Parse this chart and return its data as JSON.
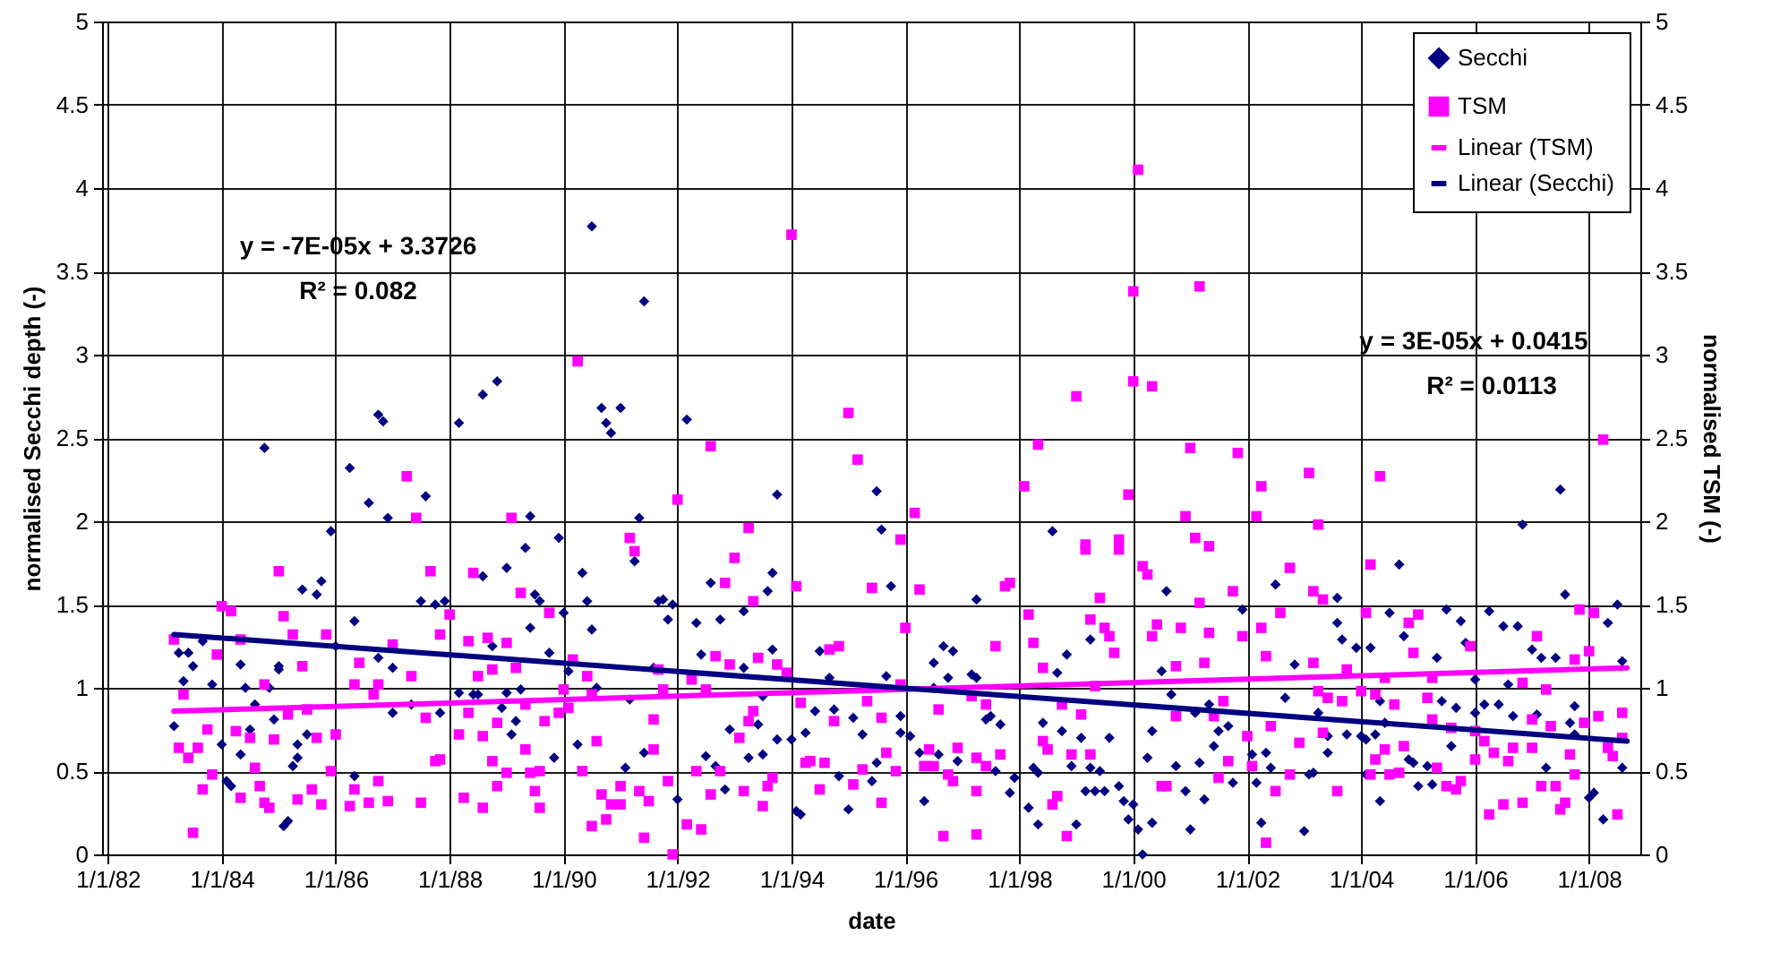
{
  "chart_data": {
    "type": "scatter",
    "xlabel": "date",
    "ylabel": "normalised Secchi depth (-)",
    "y2label": "normalised TSM (-)",
    "xlim": [
      "1981-11-25",
      "2008-11-25"
    ],
    "xticks": [
      {
        "value": "1982-01-01",
        "label": "1/1/82"
      },
      {
        "value": "1984-01-01",
        "label": "1/1/84"
      },
      {
        "value": "1986-01-01",
        "label": "1/1/86"
      },
      {
        "value": "1988-01-01",
        "label": "1/1/88"
      },
      {
        "value": "1990-01-01",
        "label": "1/1/90"
      },
      {
        "value": "1992-01-01",
        "label": "1/1/92"
      },
      {
        "value": "1994-01-01",
        "label": "1/1/94"
      },
      {
        "value": "1996-01-01",
        "label": "1/1/96"
      },
      {
        "value": "1998-01-01",
        "label": "1/1/98"
      },
      {
        "value": "2000-01-01",
        "label": "1/1/00"
      },
      {
        "value": "2002-01-01",
        "label": "1/1/02"
      },
      {
        "value": "2004-01-01",
        "label": "1/1/04"
      },
      {
        "value": "2006-01-01",
        "label": "1/1/06"
      },
      {
        "value": "2008-01-01",
        "label": "1/1/08"
      }
    ],
    "ylim": [
      0,
      5
    ],
    "yticks": [
      0,
      0.5,
      1,
      1.5,
      2,
      2.5,
      3,
      3.5,
      4,
      4.5,
      5
    ],
    "y2lim": [
      0,
      5
    ],
    "y2ticks": [
      0,
      0.5,
      1,
      1.5,
      2,
      2.5,
      3,
      3.5,
      4,
      4.5,
      5
    ],
    "grid": true,
    "legend": "top right",
    "annotations": [
      "y = -7E-05x + 3.3726",
      "R² = 0.082",
      "y = 3E-05x + 0.0415",
      "R² = 0.0113"
    ],
    "series": [
      {
        "name": "Secchi",
        "marker": "diamond",
        "color": "#000080",
        "x": [
          "1983-03",
          "1983-04",
          "1983-06",
          "1983-05",
          "1983-07",
          "1983-09",
          "1983-11",
          "1984-01",
          "1984-02",
          "1984-03",
          "1984-05",
          "1984-05",
          "1984-06",
          "1984-07",
          "1984-08",
          "1984-10",
          "1984-11",
          "1984-12",
          "1985-01",
          "1985-01",
          "1985-02",
          "1985-03",
          "1985-04",
          "1985-05",
          "1985-05",
          "1985-06",
          "1985-07",
          "1985-09",
          "1985-10",
          "1985-12",
          "1986-01",
          "1986-04",
          "1986-05",
          "1986-05",
          "1986-08",
          "1986-10",
          "1986-10",
          "1986-11",
          "1986-12",
          "1987-01",
          "1987-01",
          "1987-05",
          "1987-07",
          "1987-08",
          "1987-10",
          "1987-11",
          "1987-12",
          "1988-03",
          "1988-03",
          "1988-06",
          "1988-07",
          "1988-08",
          "1988-08",
          "1988-11",
          "1988-10",
          "1988-12",
          "1989-01",
          "1989-01",
          "1989-02",
          "1989-03",
          "1989-04",
          "1989-05",
          "1989-06",
          "1989-06",
          "1989-07",
          "1989-08",
          "1989-10",
          "1989-11",
          "1989-12",
          "1990-01",
          "1990-02",
          "1990-04",
          "1990-05",
          "1990-06",
          "1990-07",
          "1990-07",
          "1990-08",
          "1990-09",
          "1990-10",
          "1990-11",
          "1991-01",
          "1991-02",
          "1991-03",
          "1991-04",
          "1991-05",
          "1991-06",
          "1991-06",
          "1991-08",
          "1991-09",
          "1991-10",
          "1991-11",
          "1991-12",
          "1992-01",
          "1992-03",
          "1992-05",
          "1992-06",
          "1992-07",
          "1992-08",
          "1992-09",
          "1992-10",
          "1992-11",
          "1992-12",
          "1993-03",
          "1993-03",
          "1993-04",
          "1993-06",
          "1993-07",
          "1993-07",
          "1993-08",
          "1993-09",
          "1993-09",
          "1993-10",
          "1993-10",
          "1994-01",
          "1994-02",
          "1994-03",
          "1994-04",
          "1994-06",
          "1994-07",
          "1994-09",
          "1994-10",
          "1994-11",
          "1995-01",
          "1995-02",
          "1995-04",
          "1995-06",
          "1995-07",
          "1995-07",
          "1995-08",
          "1995-09",
          "1995-10",
          "1995-12",
          "1995-12",
          "1996-02",
          "1996-04",
          "1996-05",
          "1996-07",
          "1996-07",
          "1996-08",
          "1996-09",
          "1996-10",
          "1996-11",
          "1996-12",
          "1997-03",
          "1997-04",
          "1997-04",
          "1997-06",
          "1997-07",
          "1997-08",
          "1997-09",
          "1997-11",
          "1997-12",
          "1998-03",
          "1998-04",
          "1998-05",
          "1998-05",
          "1998-06",
          "1998-08",
          "1998-09",
          "1998-10",
          "1998-11",
          "1998-12",
          "1999-01",
          "1999-02",
          "1999-03",
          "1999-04",
          "1999-04",
          "1999-05",
          "1999-06",
          "1999-07",
          "1999-08",
          "1999-10",
          "1999-11",
          "1999-12",
          "2000-01",
          "2000-02",
          "2000-03",
          "2000-04",
          "2000-05",
          "2000-05",
          "2000-07",
          "2000-08",
          "2000-09",
          "2000-10",
          "2000-12",
          "2001-01",
          "2001-02",
          "2001-03",
          "2001-04",
          "2001-05",
          "2001-06",
          "2001-07",
          "2001-09",
          "2001-10",
          "2001-12",
          "2002-02",
          "2002-03",
          "2002-04",
          "2002-05",
          "2002-06",
          "2002-07",
          "2002-09",
          "2002-11",
          "2003-01",
          "2003-02",
          "2003-03",
          "2003-04",
          "2003-06",
          "2003-06",
          "2003-08",
          "2003-08",
          "2003-09",
          "2003-10",
          "2003-12",
          "2004-01",
          "2004-02",
          "2004-02",
          "2004-03",
          "2004-04",
          "2004-05",
          "2004-05",
          "2004-06",
          "2004-07",
          "2004-09",
          "2004-10",
          "2004-11",
          "2004-12",
          "2005-01",
          "2005-03",
          "2005-04",
          "2005-05",
          "2005-06",
          "2005-07",
          "2005-08",
          "2005-09",
          "2005-10",
          "2005-11",
          "2006-01",
          "2006-01",
          "2006-03",
          "2006-04",
          "2006-06",
          "2006-07",
          "2006-08",
          "2006-09",
          "2006-10",
          "2006-11",
          "2007-01",
          "2007-02",
          "2007-03",
          "2007-04",
          "2007-06",
          "2007-07",
          "2007-08",
          "2007-09",
          "2007-10",
          "2007-10",
          "2008-01",
          "2008-02",
          "2008-04",
          "2008-05",
          "2008-07",
          "2008-08",
          "2008-08"
        ],
        "values": [
          0.77,
          1.21,
          1.21,
          1.04,
          1.13,
          1.28,
          1.02,
          0.66,
          0.44,
          0.41,
          1.14,
          0.6,
          1.0,
          0.75,
          0.9,
          2.44,
          1.0,
          0.81,
          1.13,
          1.11,
          0.17,
          0.2,
          0.53,
          0.66,
          0.58,
          1.59,
          0.72,
          1.56,
          1.64,
          1.94,
          1.25,
          2.32,
          0.47,
          1.4,
          2.11,
          1.18,
          2.64,
          2.6,
          2.02,
          1.12,
          0.85,
          0.9,
          1.52,
          2.15,
          1.5,
          0.85,
          1.52,
          0.97,
          2.59,
          0.96,
          0.96,
          1.67,
          2.76,
          2.84,
          1.25,
          0.88,
          1.72,
          0.97,
          0.72,
          0.8,
          0.99,
          1.84,
          2.03,
          1.36,
          1.56,
          1.52,
          1.21,
          0.58,
          1.9,
          1.45,
          1.1,
          0.66,
          1.69,
          1.52,
          1.35,
          3.77,
          1.0,
          2.68,
          2.59,
          2.53,
          2.68,
          0.52,
          0.93,
          1.76,
          2.02,
          3.32,
          0.61,
          1.12,
          1.52,
          1.53,
          1.41,
          1.5,
          0.33,
          2.61,
          1.39,
          1.2,
          0.59,
          1.63,
          0.53,
          1.41,
          0.39,
          0.75,
          1.46,
          1.12,
          0.58,
          0.78,
          0.95,
          0.6,
          1.58,
          1.23,
          1.69,
          2.16,
          0.69,
          0.69,
          0.26,
          0.24,
          0.73,
          0.86,
          1.22,
          1.06,
          0.87,
          0.47,
          0.27,
          0.82,
          0.72,
          0.44,
          2.18,
          0.55,
          1.95,
          1.07,
          1.61,
          0.73,
          0.83,
          0.71,
          0.61,
          0.32,
          1.0,
          1.15,
          0.6,
          1.25,
          1.06,
          1.22,
          0.56,
          1.08,
          1.53,
          1.06,
          0.81,
          0.83,
          0.5,
          0.78,
          0.37,
          0.46,
          0.28,
          0.52,
          0.18,
          0.49,
          0.79,
          1.94,
          1.09,
          0.74,
          1.2,
          0.53,
          0.18,
          0.7,
          0.38,
          1.29,
          0.52,
          0.38,
          0.5,
          0.38,
          0.7,
          0.41,
          0.32,
          0.21,
          0.3,
          0.15,
          0.0,
          0.58,
          0.74,
          0.19,
          1.1,
          1.58,
          0.96,
          0.53,
          0.38,
          0.15,
          0.85,
          0.55,
          0.33,
          0.9,
          0.65,
          0.74,
          0.77,
          0.43,
          1.47,
          0.6,
          0.43,
          0.19,
          0.61,
          0.52,
          1.62,
          0.94,
          1.14,
          0.14,
          0.48,
          0.49,
          0.85,
          0.61,
          0.71,
          1.54,
          1.39,
          1.29,
          0.72,
          1.24,
          0.71,
          0.48,
          0.69,
          1.24,
          0.72,
          0.92,
          0.32,
          0.79,
          1.45,
          1.74,
          1.31,
          0.57,
          0.55,
          0.41,
          0.53,
          0.42,
          1.18,
          0.92,
          1.47,
          0.65,
          0.88,
          1.4,
          1.27,
          0.85,
          1.05,
          0.9,
          1.46,
          0.9,
          1.37,
          1.02,
          0.83,
          1.37,
          1.98,
          1.23,
          0.84,
          1.18,
          0.52,
          1.18,
          2.19,
          1.56,
          0.79,
          0.89,
          0.72,
          0.34,
          0.37,
          0.21,
          1.39,
          1.5,
          1.16,
          0.52
        ]
      },
      {
        "name": "TSM",
        "marker": "square",
        "color": "#ff00ff",
        "axis": "y2",
        "x": [
          "1983-03",
          "1983-05",
          "1983-04",
          "1983-06",
          "1983-08",
          "1983-07",
          "1983-09",
          "1983-10",
          "1983-11",
          "1983-12",
          "1984-01",
          "1984-03",
          "1984-04",
          "1984-05",
          "1984-05",
          "1984-07",
          "1984-08",
          "1984-09",
          "1984-10",
          "1984-10",
          "1984-11",
          "1984-12",
          "1985-01",
          "1985-02",
          "1985-03",
          "1985-04",
          "1985-05",
          "1985-06",
          "1985-07",
          "1985-08",
          "1985-09",
          "1985-10",
          "1985-11",
          "1985-12",
          "1986-01",
          "1986-04",
          "1986-05",
          "1986-05",
          "1986-06",
          "1986-08",
          "1986-09",
          "1986-10",
          "1986-10",
          "1986-12",
          "1987-01",
          "1987-04",
          "1987-05",
          "1987-06",
          "1987-07",
          "1987-08",
          "1987-09",
          "1987-10",
          "1987-11",
          "1987-11",
          "1988-01",
          "1988-03",
          "1988-04",
          "1988-05",
          "1988-05",
          "1988-06",
          "1988-07",
          "1988-08",
          "1988-08",
          "1988-09",
          "1988-10",
          "1988-10",
          "1988-11",
          "1988-11",
          "1989-01",
          "1989-01",
          "1989-02",
          "1989-03",
          "1989-04",
          "1989-05",
          "1989-05",
          "1989-06",
          "1989-07",
          "1989-08",
          "1989-08",
          "1989-09",
          "1989-10",
          "1989-12",
          "1990-01",
          "1990-02",
          "1990-03",
          "1990-04",
          "1990-05",
          "1990-06",
          "1990-07",
          "1990-07",
          "1990-08",
          "1990-09",
          "1990-10",
          "1990-11",
          "1991-01",
          "1991-01",
          "1991-03",
          "1991-04",
          "1991-05",
          "1991-06",
          "1991-07",
          "1991-08",
          "1991-08",
          "1991-09",
          "1991-10",
          "1991-11",
          "1991-12",
          "1992-01",
          "1992-03",
          "1992-04",
          "1992-05",
          "1992-06",
          "1992-07",
          "1992-08",
          "1992-08",
          "1992-09",
          "1992-10",
          "1992-11",
          "1992-12",
          "1993-01",
          "1993-02",
          "1993-03",
          "1993-04",
          "1993-04",
          "1993-05",
          "1993-05",
          "1993-06",
          "1993-07",
          "1993-08",
          "1993-09",
          "1993-10",
          "1993-12",
          "1994-01",
          "1994-02",
          "1994-03",
          "1994-04",
          "1994-05",
          "1994-07",
          "1994-08",
          "1994-09",
          "1994-10",
          "1994-11",
          "1995-01",
          "1995-02",
          "1995-03",
          "1995-04",
          "1995-05",
          "1995-06",
          "1995-08",
          "1995-08",
          "1995-09",
          "1995-11",
          "1995-12",
          "1996-01",
          "1995-12",
          "1996-03",
          "1996-04",
          "1996-05",
          "1996-06",
          "1996-07",
          "1996-08",
          "1996-09",
          "1996-10",
          "1996-11",
          "1996-12",
          "1997-03",
          "1997-04",
          "1997-04",
          "1997-04",
          "1997-06",
          "1997-06",
          "1997-08",
          "1997-09",
          "1997-10",
          "1997-11",
          "1998-02",
          "1998-03",
          "1998-04",
          "1998-05",
          "1998-06",
          "1998-06",
          "1998-07",
          "1998-08",
          "1998-09",
          "1998-10",
          "1998-11",
          "1998-12",
          "1999-01",
          "1999-02",
          "1999-03",
          "1999-03",
          "1999-04",
          "1999-04",
          "1999-05",
          "1999-06",
          "1999-07",
          "1999-08",
          "1999-09",
          "1999-10",
          "1999-10",
          "1999-12",
          "2000-01",
          "2000-01",
          "2000-02",
          "2000-03",
          "2000-04",
          "2000-05",
          "2000-05",
          "2000-06",
          "2000-07",
          "2000-08",
          "2000-10",
          "2000-10",
          "2000-11",
          "2000-12",
          "2001-01",
          "2001-02",
          "2001-03",
          "2001-03",
          "2001-04",
          "2001-05",
          "2001-05",
          "2001-06",
          "2001-07",
          "2001-08",
          "2001-09",
          "2001-10",
          "2001-11",
          "2001-12",
          "2002-01",
          "2002-02",
          "2002-03",
          "2002-04",
          "2002-04",
          "2002-05",
          "2002-05",
          "2002-06",
          "2002-07",
          "2002-08",
          "2002-10",
          "2002-10",
          "2002-12",
          "2003-02",
          "2003-03",
          "2003-03",
          "2003-04",
          "2003-04",
          "2003-05",
          "2003-05",
          "2003-06",
          "2003-08",
          "2003-09",
          "2003-10",
          "2004-01",
          "2004-02",
          "2004-03",
          "2004-03",
          "2004-04",
          "2004-04",
          "2004-05",
          "2004-06",
          "2004-06",
          "2004-07",
          "2004-08",
          "2004-09",
          "2004-10",
          "2004-11",
          "2004-12",
          "2005-01",
          "2005-03",
          "2005-04",
          "2005-04",
          "2005-05",
          "2005-07",
          "2005-08",
          "2005-09",
          "2005-10",
          "2005-12",
          "2006-01",
          "2006-01",
          "2006-03",
          "2006-04",
          "2006-05",
          "2006-07",
          "2006-08",
          "2006-09",
          "2006-11",
          "2006-11",
          "2007-01",
          "2007-01",
          "2007-02",
          "2007-03",
          "2007-04",
          "2007-05",
          "2007-06",
          "2007-07",
          "2007-08",
          "2007-09",
          "2007-10",
          "2007-10",
          "2007-11",
          "2007-12",
          "2008-01",
          "2008-02",
          "2008-03",
          "2008-04",
          "2008-05",
          "2008-06",
          "2008-07",
          "2008-08",
          "2008-08"
        ],
        "values": [
          1.29,
          0.96,
          0.64,
          0.58,
          0.64,
          0.13,
          0.39,
          0.75,
          0.48,
          1.2,
          1.49,
          1.46,
          0.74,
          1.29,
          0.34,
          0.7,
          0.52,
          0.41,
          0.31,
          1.02,
          0.28,
          0.69,
          1.7,
          1.43,
          0.84,
          1.32,
          0.33,
          1.13,
          0.87,
          0.39,
          0.7,
          0.3,
          1.32,
          0.5,
          0.72,
          0.29,
          1.02,
          0.39,
          1.15,
          0.31,
          0.96,
          1.02,
          0.44,
          0.32,
          1.26,
          2.27,
          1.07,
          2.02,
          0.31,
          0.82,
          1.7,
          0.56,
          1.32,
          0.57,
          1.44,
          0.72,
          0.34,
          0.85,
          1.28,
          1.69,
          1.07,
          0.28,
          0.71,
          1.3,
          0.56,
          1.11,
          0.79,
          0.41,
          0.49,
          1.27,
          2.02,
          1.12,
          1.57,
          0.63,
          0.9,
          0.49,
          0.38,
          0.5,
          0.28,
          0.8,
          1.45,
          0.85,
          0.99,
          0.88,
          1.17,
          2.96,
          0.5,
          1.07,
          0.96,
          0.17,
          0.68,
          0.36,
          0.21,
          0.3,
          0.41,
          0.3,
          1.9,
          1.82,
          0.38,
          0.1,
          0.32,
          0.63,
          0.81,
          1.11,
          0.99,
          0.44,
          0.0,
          2.13,
          0.18,
          1.05,
          0.5,
          0.15,
          0.99,
          2.45,
          0.36,
          1.19,
          0.5,
          1.63,
          1.14,
          1.78,
          0.7,
          0.38,
          1.96,
          0.8,
          0.86,
          1.52,
          1.18,
          0.29,
          0.41,
          0.46,
          1.14,
          1.09,
          3.72,
          1.61,
          0.91,
          0.55,
          0.56,
          0.39,
          0.55,
          1.23,
          0.8,
          1.25,
          2.65,
          0.42,
          2.37,
          0.51,
          0.92,
          1.6,
          0.82,
          0.31,
          0.61,
          0.5,
          1.89,
          1.36,
          1.02,
          2.05,
          1.59,
          0.53,
          0.63,
          0.53,
          0.87,
          0.11,
          0.48,
          0.44,
          0.64,
          0.95,
          0.38,
          0.12,
          0.58,
          0.53,
          0.9,
          1.25,
          0.6,
          1.61,
          1.63,
          2.21,
          1.44,
          1.27,
          2.46,
          1.12,
          0.68,
          0.63,
          0.3,
          0.35,
          0.9,
          0.11,
          0.6,
          2.75,
          0.84,
          1.83,
          1.86,
          0.6,
          1.41,
          1.01,
          1.54,
          1.36,
          1.31,
          1.21,
          1.89,
          1.83,
          2.16,
          2.84,
          3.38,
          4.11,
          1.73,
          1.68,
          1.31,
          2.81,
          1.38,
          0.41,
          0.41,
          1.13,
          0.83,
          1.36,
          2.03,
          2.44,
          1.9,
          3.41,
          1.51,
          1.15,
          1.85,
          1.33,
          0.83,
          0.46,
          0.92,
          0.56,
          1.58,
          2.41,
          1.31,
          0.71,
          0.53,
          2.03,
          2.21,
          1.36,
          1.19,
          0.07,
          0.77,
          0.38,
          1.45,
          1.72,
          0.48,
          0.67,
          2.29,
          1.58,
          1.15,
          1.98,
          0.98,
          0.73,
          1.53,
          0.94,
          0.38,
          0.92,
          1.11,
          0.98,
          1.45,
          1.74,
          0.48,
          0.96,
          0.57,
          2.27,
          0.63,
          1.06,
          0.48,
          0.9,
          0.49,
          0.65,
          1.39,
          1.21,
          1.44,
          0.94,
          1.06,
          0.81,
          0.52,
          0.41,
          0.76,
          0.39,
          0.44,
          1.25,
          0.74,
          0.57,
          0.68,
          0.24,
          0.61,
          0.3,
          0.56,
          0.64,
          0.31,
          1.03,
          0.64,
          0.81,
          1.31,
          0.41,
          0.99,
          0.77,
          0.41,
          0.27,
          0.31,
          0.6,
          0.48,
          1.17,
          1.47,
          0.79,
          1.22,
          1.45,
          0.83,
          2.49,
          0.64,
          0.59,
          0.24,
          0.7,
          0.85
        ]
      },
      {
        "name": "Linear (TSM)",
        "type": "line",
        "color": "#ff00ff",
        "axis": "y2",
        "x": [
          "1983-03",
          "2008-09"
        ],
        "values": [
          0.86,
          1.12
        ]
      },
      {
        "name": "Linear (Secchi)",
        "type": "line",
        "color": "#000080",
        "x": [
          "1983-03",
          "2008-09"
        ],
        "values": [
          1.32,
          0.68
        ]
      }
    ]
  }
}
